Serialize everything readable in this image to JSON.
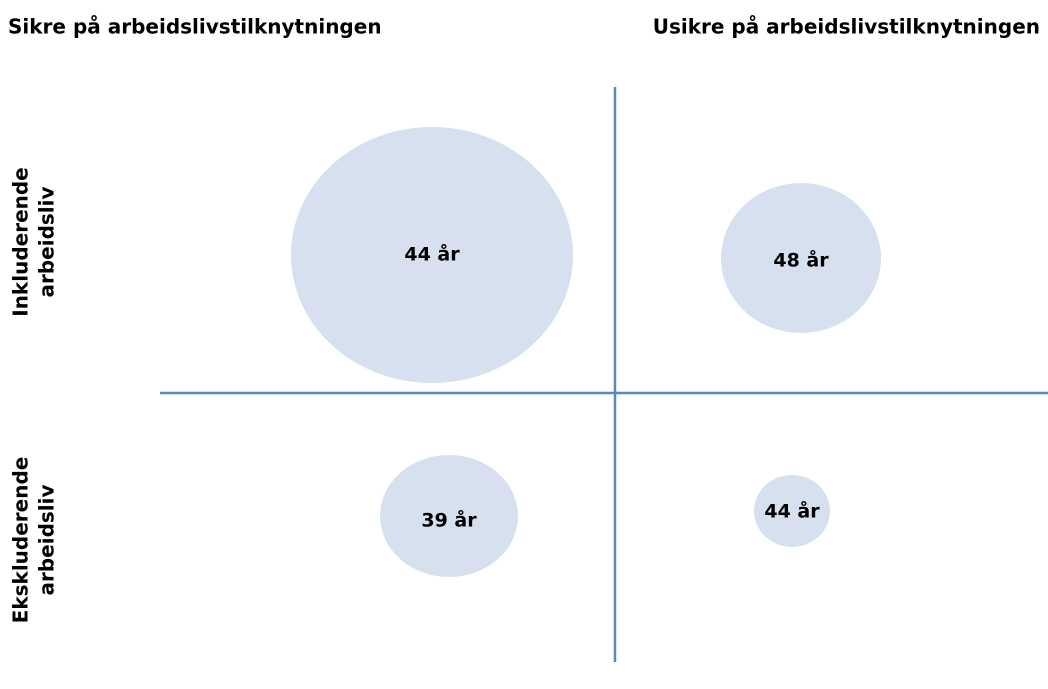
{
  "column_headers": [
    "Sikre på arbeidslivstilknytningen",
    "Usikre på arbeidslivstilknytningen"
  ],
  "row_headers": [
    [
      "Inkluderende",
      "arbeidsliv"
    ],
    [
      "Ekskluderende",
      "arbeidsliv"
    ]
  ],
  "cells": [
    [
      "44 år",
      "48 år"
    ],
    [
      "39 år",
      "44 år"
    ]
  ]
}
